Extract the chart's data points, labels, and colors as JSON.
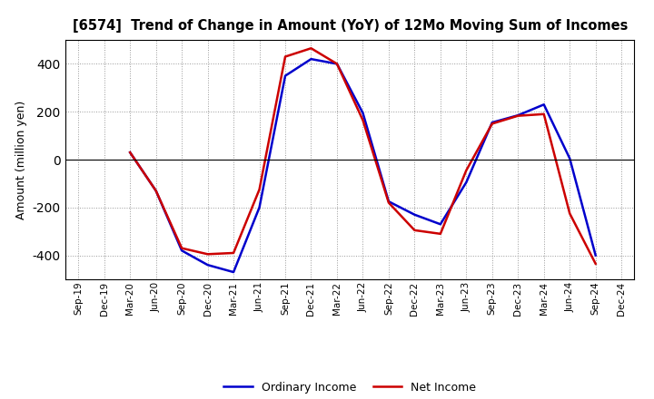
{
  "title": "[6574]  Trend of Change in Amount (YoY) of 12Mo Moving Sum of Incomes",
  "ylabel": "Amount (million yen)",
  "x_labels": [
    "Sep-19",
    "Dec-19",
    "Mar-20",
    "Jun-20",
    "Sep-20",
    "Dec-20",
    "Mar-21",
    "Jun-21",
    "Sep-21",
    "Dec-21",
    "Mar-22",
    "Jun-22",
    "Sep-22",
    "Dec-22",
    "Mar-23",
    "Jun-23",
    "Sep-23",
    "Dec-23",
    "Mar-24",
    "Jun-24",
    "Sep-24",
    "Dec-24"
  ],
  "ordinary_income": [
    null,
    null,
    30,
    -130,
    -380,
    -440,
    -470,
    -200,
    350,
    420,
    400,
    195,
    -175,
    -230,
    -270,
    -95,
    155,
    185,
    230,
    5,
    -400,
    null
  ],
  "net_income": [
    null,
    null,
    30,
    -130,
    -370,
    -395,
    -390,
    -125,
    430,
    465,
    400,
    165,
    -180,
    -295,
    -310,
    -45,
    150,
    183,
    190,
    -225,
    -435,
    null
  ],
  "ordinary_color": "#0000cc",
  "net_color": "#cc0000",
  "ylim": [
    -500,
    500
  ],
  "yticks": [
    -400,
    -200,
    0,
    200,
    400
  ],
  "background_color": "#ffffff",
  "grid_color": "#999999",
  "legend_labels": [
    "Ordinary Income",
    "Net Income"
  ],
  "linewidth": 1.8
}
